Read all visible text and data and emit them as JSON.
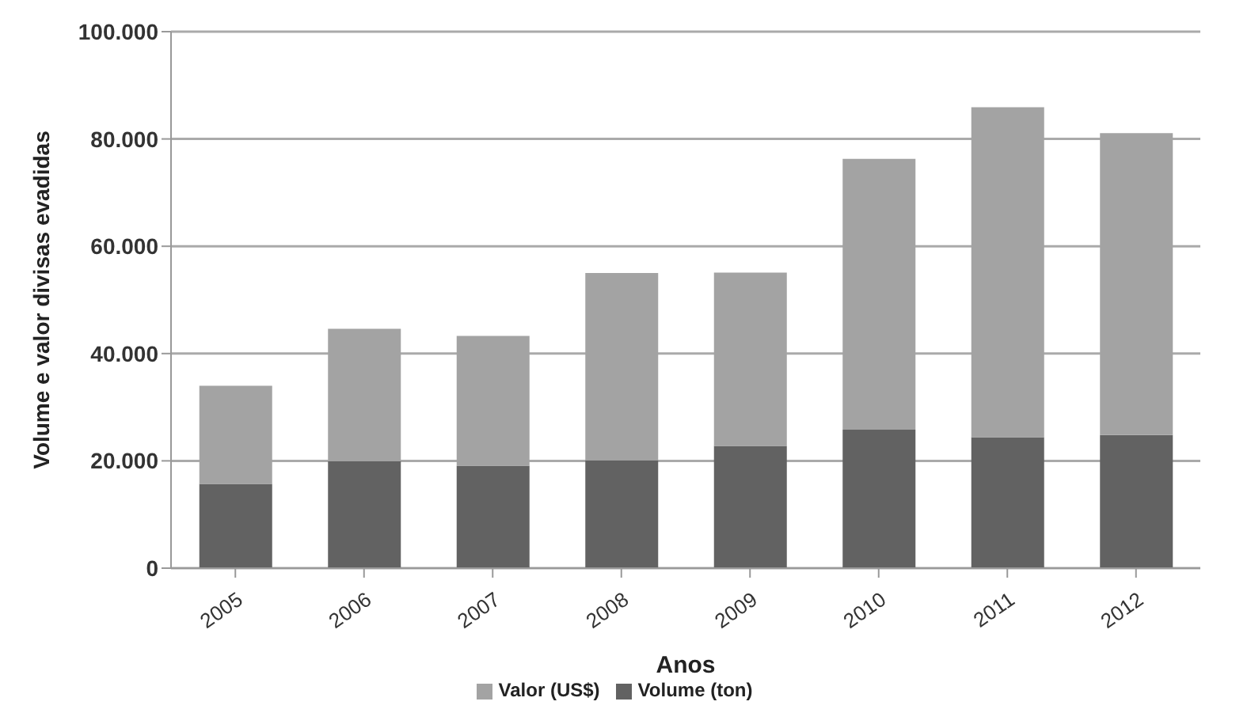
{
  "chart_data": {
    "type": "bar",
    "stacked": true,
    "xlabel": "Anos",
    "ylabel": "Volume e valor divisas evadidas",
    "categories": [
      "2005",
      "2006",
      "2007",
      "2008",
      "2009",
      "2010",
      "2011",
      "2012"
    ],
    "series": [
      {
        "name": "Volume (ton)",
        "color": "#626262",
        "values": [
          15700,
          19900,
          19100,
          20100,
          22800,
          25800,
          24400,
          24800
        ]
      },
      {
        "name": "Valor (US$)",
        "color": "#a3a3a3",
        "values": [
          18300,
          24700,
          24200,
          34900,
          32300,
          50500,
          61500,
          56300
        ]
      }
    ],
    "ylim": [
      0,
      100000
    ],
    "yticks": [
      {
        "value": 0,
        "label": "0"
      },
      {
        "value": 20000,
        "label": "20.000"
      },
      {
        "value": 40000,
        "label": "40.000"
      },
      {
        "value": 60000,
        "label": "60.000"
      },
      {
        "value": 80000,
        "label": "80.000"
      },
      {
        "value": 100000,
        "label": "100.000"
      }
    ],
    "grid": "y",
    "legend": "bottom"
  }
}
